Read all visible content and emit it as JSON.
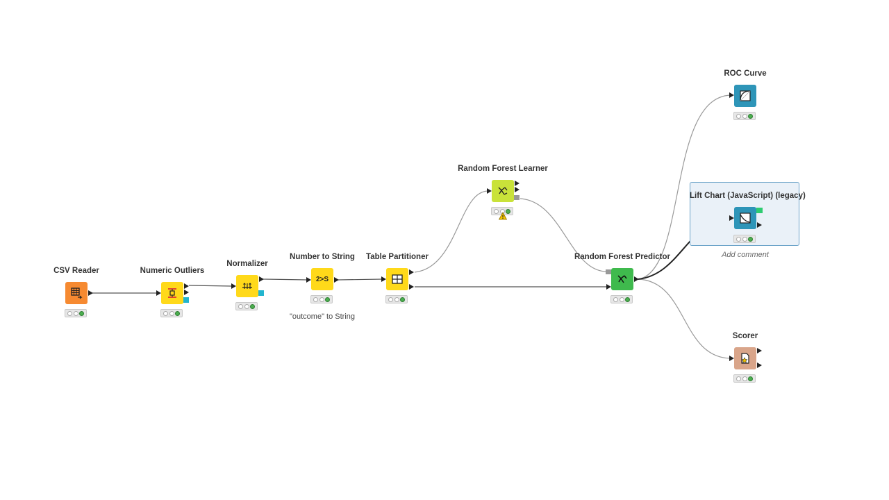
{
  "nodes": {
    "csv_reader": {
      "title": "CSV Reader",
      "color": "#f68a31"
    },
    "numeric_outliers": {
      "title": "Numeric Outliers",
      "color": "#ffd91a"
    },
    "normalizer": {
      "title": "Normalizer",
      "color": "#ffd91a"
    },
    "number_to_string": {
      "title": "Number to String",
      "color": "#ffd91a",
      "comment": "\"outcome\" to String",
      "icon_text": "2>S"
    },
    "table_partitioner": {
      "title": "Table Partitioner",
      "color": "#ffd91a"
    },
    "rf_learner": {
      "title": "Random Forest Learner",
      "color": "#c9e23a"
    },
    "rf_predictor": {
      "title": "Random Forest Predictor",
      "color": "#3fba4d"
    },
    "roc_curve": {
      "title": "ROC Curve",
      "color": "#2e95b8"
    },
    "lift_chart": {
      "title": "Lift Chart (JavaScript) (legacy)",
      "color": "#2e95b8"
    },
    "scorer": {
      "title": "Scorer",
      "color": "#d9a58a"
    }
  },
  "selection": {
    "add_comment": "Add comment"
  },
  "colors": {
    "connection": "#8a8a8a",
    "connection_selected": "#2a2a2a",
    "selection_border": "#6aa2c8"
  }
}
